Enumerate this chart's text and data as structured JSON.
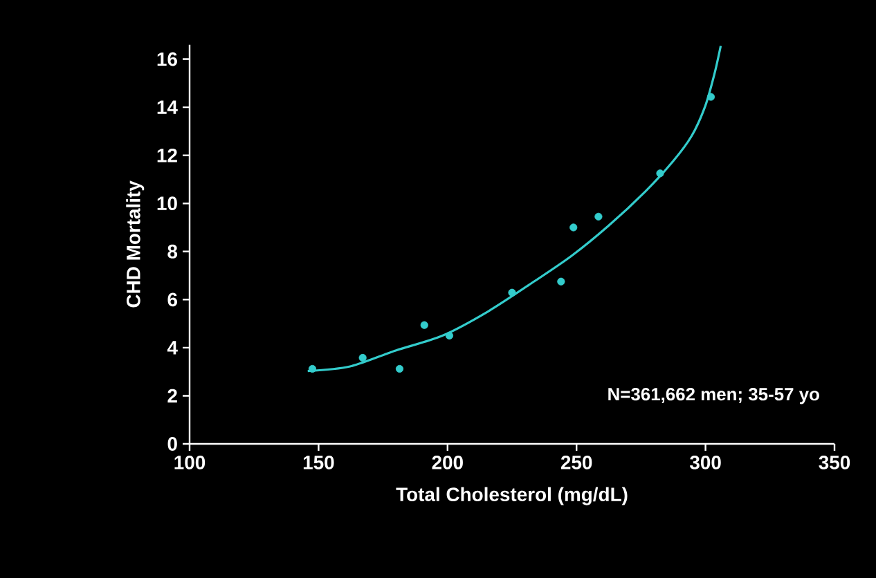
{
  "chart_data": {
    "type": "scatter",
    "xlabel": "Total Cholesterol (mg/dL)",
    "ylabel": "CHD Mortality",
    "annotations": [
      "N=361,662 men; 35-57 yo"
    ],
    "xlim": [
      100,
      350
    ],
    "ylim": [
      0,
      16.6
    ],
    "xticks": [
      100,
      150,
      200,
      250,
      300,
      350
    ],
    "yticks": [
      0,
      2,
      4,
      6,
      8,
      10,
      12,
      14,
      16
    ],
    "series": [
      {
        "color": "#33cccc",
        "marker": "circle",
        "x": [
          147.6,
          167.1,
          181.4,
          191.0,
          200.7,
          225.0,
          244.0,
          248.8,
          258.5,
          282.4,
          302.1
        ],
        "values": [
          3.12,
          3.58,
          3.12,
          4.94,
          4.5,
          6.29,
          6.75,
          9.0,
          9.45,
          11.25,
          14.43
        ]
      },
      {
        "type": "line",
        "color": "#33cccc",
        "marker": "none",
        "line_style": "solid",
        "x": [
          145.8,
          162.2,
          180.1,
          198.0,
          215.9,
          233.8,
          248.1,
          262.4,
          276.7,
          287.4,
          294.6,
          299.9,
          303.5,
          305.9
        ],
        "values": [
          3.03,
          3.22,
          3.89,
          4.5,
          5.52,
          6.77,
          7.82,
          9.07,
          10.5,
          11.75,
          12.8,
          14.05,
          15.4,
          16.55
        ]
      }
    ]
  }
}
